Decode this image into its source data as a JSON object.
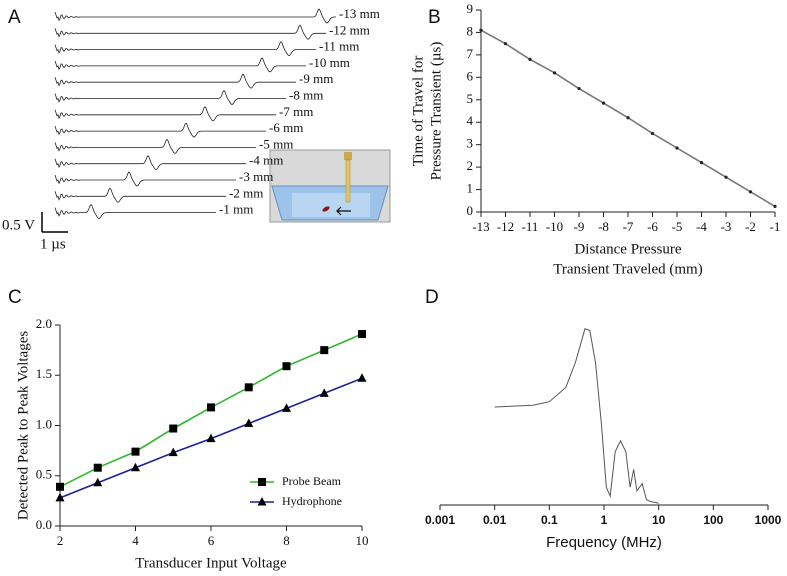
{
  "chart_data": [
    {
      "type": "traces",
      "panel_label": "A",
      "labels": [
        "-13 mm",
        "-12 mm",
        "-11 mm",
        "-10 mm",
        "-9 mm",
        "-8 mm",
        "-7 mm",
        "-6 mm",
        "-5 mm",
        "-4 mm",
        "-3 mm",
        "-2 mm",
        "-1 mm"
      ],
      "scale_y_label": "0.5 V",
      "scale_x_label": "1 µs"
    },
    {
      "type": "line",
      "panel_label": "B",
      "x": [
        -13,
        -12,
        -11,
        -10,
        -9,
        -8,
        -7,
        -6,
        -5,
        -4,
        -3,
        -2,
        -1
      ],
      "series": [
        {
          "color": "#777777",
          "marker": "dot",
          "values": [
            8.1,
            7.5,
            6.8,
            6.2,
            5.5,
            4.85,
            4.2,
            3.5,
            2.85,
            2.2,
            1.55,
            0.9,
            0.25
          ]
        }
      ],
      "xlim": [
        -13,
        -1
      ],
      "xticks": [
        -13,
        -12,
        -11,
        -10,
        -9,
        -8,
        -7,
        -6,
        -5,
        -4,
        -3,
        -2,
        -1
      ],
      "ylim": [
        0,
        9
      ],
      "yticks": [
        0,
        1,
        2,
        3,
        4,
        5,
        6,
        7,
        8,
        9
      ],
      "x_label": [
        "Distance Pressure",
        "Transient Traveled (mm)"
      ],
      "y_label": [
        "Time of Travel for",
        "Pressure Transient (µs)"
      ]
    },
    {
      "type": "line",
      "panel_label": "C",
      "x": [
        2,
        3,
        4,
        5,
        6,
        7,
        8,
        9,
        10
      ],
      "series": [
        {
          "name": "Probe Beam",
          "color": "#2db82d",
          "marker": "square",
          "values": [
            0.39,
            0.58,
            0.74,
            0.97,
            1.18,
            1.38,
            1.59,
            1.75,
            1.91
          ]
        },
        {
          "name": "Hydrophone",
          "color": "#1f1f9f",
          "marker": "triangle",
          "values": [
            0.28,
            0.43,
            0.58,
            0.73,
            0.87,
            1.02,
            1.17,
            1.32,
            1.47
          ]
        }
      ],
      "xlim": [
        2,
        10
      ],
      "xticks": [
        2,
        4,
        6,
        8,
        10
      ],
      "ylim": [
        0,
        2
      ],
      "yticks": [
        {
          "value": 0,
          "label": "0.0"
        },
        0.5,
        {
          "value": 1,
          "label": "1.0"
        },
        1.5,
        {
          "value": 2,
          "label": "2.0"
        }
      ],
      "x_label": [
        "Transducer Input Voltage"
      ],
      "y_label": [
        "Detected Peak to Peak Voltages"
      ],
      "legend": "lower-right"
    },
    {
      "type": "line",
      "panel_label": "D",
      "log_x": true,
      "y_axis": false,
      "x": [
        0.01,
        0.05,
        0.1,
        0.2,
        0.3,
        0.45,
        0.55,
        0.7,
        0.9,
        1.1,
        1.3,
        1.6,
        2,
        2.5,
        3,
        3.5,
        4,
        5,
        6,
        7,
        10
      ],
      "series": [
        {
          "color": "#555555",
          "marker": "none",
          "values": [
            0.55,
            0.56,
            0.58,
            0.66,
            0.8,
            0.99,
            0.98,
            0.8,
            0.45,
            0.1,
            0.05,
            0.3,
            0.36,
            0.3,
            0.1,
            0.2,
            0.08,
            0.12,
            0.03,
            0.02,
            0.01
          ]
        }
      ],
      "xlim": [
        0.001,
        1000
      ],
      "xticks": [
        0.001,
        0.01,
        0.1,
        1,
        10,
        100,
        1000
      ],
      "ylim": [
        0,
        1.05
      ],
      "x_label": [
        "Frequency (MHz)"
      ]
    }
  ]
}
